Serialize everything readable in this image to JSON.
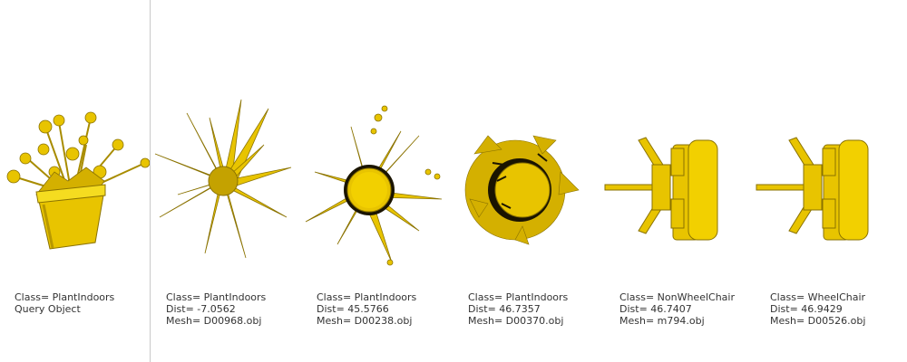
{
  "query": {
    "class_line": "Class= PlantIndoors",
    "label_line": "Query Object"
  },
  "results": [
    {
      "class_line": "Class= PlantIndoors",
      "dist_line": "Dist= -7.0562",
      "mesh_line": "Mesh= D00968.obj"
    },
    {
      "class_line": "Class= PlantIndoors",
      "dist_line": "Dist= 45.5766",
      "mesh_line": "Mesh= D00238.obj"
    },
    {
      "class_line": "Class= PlantIndoors",
      "dist_line": "Dist= 46.7357",
      "mesh_line": "Mesh= D00370.obj"
    },
    {
      "class_line": "Class= NonWheelChair",
      "dist_line": "Dist= 46.7407",
      "mesh_line": "Mesh= m794.obj"
    },
    {
      "class_line": "Class= WheelChair",
      "dist_line": "Dist= 46.9429",
      "mesh_line": "Mesh= D00526.obj"
    }
  ],
  "colors": {
    "model_fill": "#e8c400",
    "model_dark": "#8a7200",
    "model_light": "#f5dc20"
  }
}
